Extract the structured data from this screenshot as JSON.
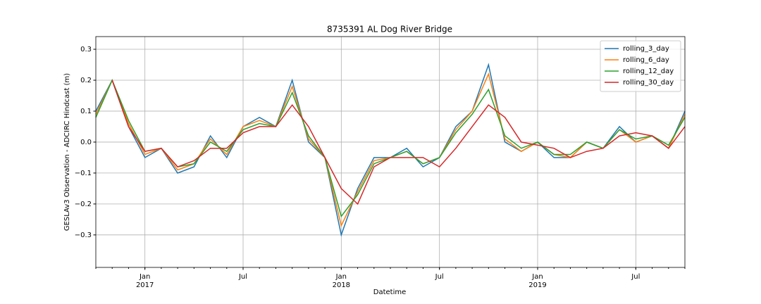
{
  "chart_data": {
    "type": "line",
    "title": "8735391 AL Dog River Bridge",
    "x_label": "Datetime",
    "y_label": "GESLAv3 Observation - ADCIRC Hindcast (m)",
    "x": [
      "2016-10",
      "2016-11",
      "2016-12",
      "2017-01",
      "2017-02",
      "2017-03",
      "2017-04",
      "2017-05",
      "2017-06",
      "2017-07",
      "2017-08",
      "2017-09",
      "2017-10",
      "2017-11",
      "2017-12",
      "2018-01",
      "2018-02",
      "2018-03",
      "2018-04",
      "2018-05",
      "2018-06",
      "2018-07",
      "2018-08",
      "2018-09",
      "2018-10",
      "2018-11",
      "2018-12",
      "2019-01",
      "2019-02",
      "2019-03",
      "2019-04",
      "2019-05",
      "2019-06",
      "2019-07",
      "2019-08",
      "2019-09",
      "2019-10"
    ],
    "series": [
      {
        "name": "rolling_3_day",
        "color": "#1f77b4",
        "values": [
          0.1,
          0.2,
          0.05,
          -0.05,
          -0.02,
          -0.1,
          -0.08,
          0.02,
          -0.05,
          0.05,
          0.08,
          0.05,
          0.2,
          0.0,
          -0.05,
          -0.3,
          -0.15,
          -0.05,
          -0.05,
          -0.02,
          -0.08,
          -0.05,
          0.05,
          0.1,
          0.25,
          0.0,
          -0.03,
          0.0,
          -0.05,
          -0.05,
          0.0,
          -0.02,
          0.05,
          0.0,
          0.02,
          -0.02,
          0.1
        ]
      },
      {
        "name": "rolling_6_day",
        "color": "#ff7f0e",
        "values": [
          0.09,
          0.2,
          0.06,
          -0.04,
          -0.02,
          -0.09,
          -0.07,
          0.01,
          -0.04,
          0.05,
          0.07,
          0.05,
          0.18,
          0.01,
          -0.05,
          -0.27,
          -0.16,
          -0.06,
          -0.05,
          -0.03,
          -0.07,
          -0.05,
          0.04,
          0.1,
          0.22,
          0.01,
          -0.03,
          0.0,
          -0.04,
          -0.05,
          0.0,
          -0.02,
          0.04,
          0.0,
          0.02,
          -0.02,
          0.09
        ]
      },
      {
        "name": "rolling_12_day",
        "color": "#2ca02c",
        "values": [
          0.08,
          0.2,
          0.07,
          -0.03,
          -0.02,
          -0.08,
          -0.07,
          0.0,
          -0.03,
          0.04,
          0.06,
          0.05,
          0.16,
          0.02,
          -0.05,
          -0.24,
          -0.17,
          -0.07,
          -0.05,
          -0.03,
          -0.07,
          -0.05,
          0.03,
          0.09,
          0.17,
          0.02,
          -0.02,
          0.0,
          -0.04,
          -0.04,
          0.0,
          -0.02,
          0.04,
          0.01,
          0.02,
          -0.01,
          0.08
        ]
      },
      {
        "name": "rolling_30_day",
        "color": "#d62728",
        "values": [
          null,
          0.2,
          0.05,
          -0.03,
          -0.02,
          -0.08,
          -0.06,
          -0.02,
          -0.02,
          0.03,
          0.05,
          0.05,
          0.12,
          0.05,
          -0.05,
          -0.15,
          -0.2,
          -0.08,
          -0.05,
          -0.05,
          -0.05,
          -0.08,
          -0.02,
          0.05,
          0.12,
          0.08,
          0.0,
          -0.01,
          -0.02,
          -0.05,
          -0.03,
          -0.02,
          0.02,
          0.03,
          0.02,
          -0.02,
          0.05
        ]
      }
    ],
    "xlim": [
      "2016-10",
      "2019-10"
    ],
    "xticks": [
      {
        "value": "2017-01",
        "label": "Jan\n2017"
      },
      {
        "value": "2017-07",
        "label": "Jul"
      },
      {
        "value": "2018-01",
        "label": "Jan\n2018"
      },
      {
        "value": "2018-07",
        "label": "Jul"
      },
      {
        "value": "2019-01",
        "label": "Jan\n2019"
      },
      {
        "value": "2019-07",
        "label": "Jul"
      }
    ],
    "ylim": [
      -0.405,
      0.341
    ],
    "yticks": [
      {
        "value": -0.3,
        "label": "−0.3"
      },
      {
        "value": -0.2,
        "label": "−0.2"
      },
      {
        "value": -0.1,
        "label": "−0.1"
      },
      {
        "value": 0,
        "label": "0.0"
      },
      0.1,
      0.2,
      0.3
    ],
    "grid": true,
    "legend": "upper right"
  }
}
